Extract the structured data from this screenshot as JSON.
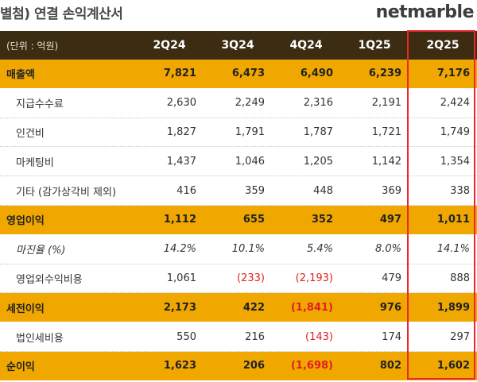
{
  "title": "별첨) 연결 손익계산서",
  "logo": "netmarble",
  "header": {
    "unit": "(단위 : 억원)",
    "periods": [
      "2Q24",
      "3Q24",
      "4Q24",
      "1Q25",
      "2Q25"
    ]
  },
  "rows": [
    {
      "label": "매출액",
      "values": [
        "7,821",
        "6,473",
        "6,490",
        "6,239",
        "7,176"
      ]
    },
    {
      "label": "지급수수료",
      "values": [
        "2,630",
        "2,249",
        "2,316",
        "2,191",
        "2,424"
      ]
    },
    {
      "label": "인건비",
      "values": [
        "1,827",
        "1,791",
        "1,787",
        "1,721",
        "1,749"
      ]
    },
    {
      "label": "마케팅비",
      "values": [
        "1,437",
        "1,046",
        "1,205",
        "1,142",
        "1,354"
      ]
    },
    {
      "label": "기타 (감가상각비 제외)",
      "values": [
        "416",
        "359",
        "448",
        "369",
        "338"
      ]
    },
    {
      "label": "영업이익",
      "values": [
        "1,112",
        "655",
        "352",
        "497",
        "1,011"
      ]
    },
    {
      "label": "마진율 (%)",
      "values": [
        "14.2%",
        "10.1%",
        "5.4%",
        "8.0%",
        "14.1%"
      ]
    },
    {
      "label": "영업외수익비용",
      "values": [
        "1,061",
        "(233)",
        "(2,193)",
        "479",
        "888"
      ]
    },
    {
      "label": "세전이익",
      "values": [
        "2,173",
        "422",
        "(1,841)",
        "976",
        "1,899"
      ]
    },
    {
      "label": "법인세비용",
      "values": [
        "550",
        "216",
        "(143)",
        "174",
        "297"
      ]
    },
    {
      "label": "순이익",
      "values": [
        "1,623",
        "206",
        "(1,698)",
        "802",
        "1,602"
      ]
    }
  ],
  "colors": {
    "header_bg": "#3c2c12",
    "highlight_row": "#f0a800",
    "negative": "#e02020",
    "focus_box": "#e8282a"
  }
}
